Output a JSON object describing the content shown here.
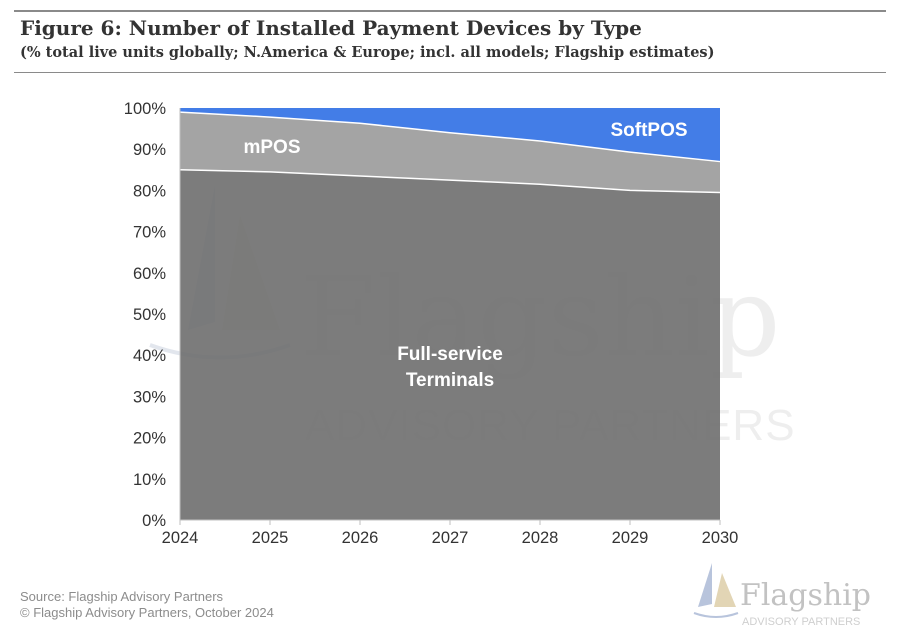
{
  "header": {
    "title": "Figure 6: Number of Installed Payment Devices by Type",
    "subtitle": "(% total live units globally; N.America & Europe; incl. all models; Flagship estimates)"
  },
  "footer": {
    "source": "Source: Flagship Advisory Partners",
    "copyright": "© Flagship Advisory Partners, October 2024"
  },
  "watermark": {
    "name": "Flagship",
    "tagline": "ADVISORY PARTNERS"
  },
  "colors": {
    "full_service": "#6e6e6e",
    "mpos": "#9a9a9a",
    "softpos": "#2f6fe4",
    "axis_text": "#333333",
    "series_label": "#ffffff",
    "watermark": "#c9c9c9"
  },
  "chart_data": {
    "type": "area",
    "stacked": true,
    "x": [
      "2024",
      "2025",
      "2026",
      "2027",
      "2028",
      "2029",
      "2030"
    ],
    "ylim": [
      0,
      100
    ],
    "yticks": [
      "0%",
      "10%",
      "20%",
      "30%",
      "40%",
      "50%",
      "60%",
      "70%",
      "80%",
      "90%",
      "100%"
    ],
    "ytick_values": [
      0,
      10,
      20,
      30,
      40,
      50,
      60,
      70,
      80,
      90,
      100
    ],
    "grid": false,
    "series": [
      {
        "name": "Full-service Terminals",
        "label_lines": [
          "Full-service",
          "Terminals"
        ],
        "values": [
          85,
          84.5,
          83.5,
          82.5,
          81.5,
          80,
          79.5
        ]
      },
      {
        "name": "mPOS",
        "values": [
          14,
          13.3,
          12.8,
          11.5,
          10.5,
          9.3,
          7.5
        ]
      },
      {
        "name": "SoftPOS",
        "values": [
          1,
          2.2,
          3.7,
          6,
          8,
          10.7,
          13
        ]
      }
    ]
  }
}
